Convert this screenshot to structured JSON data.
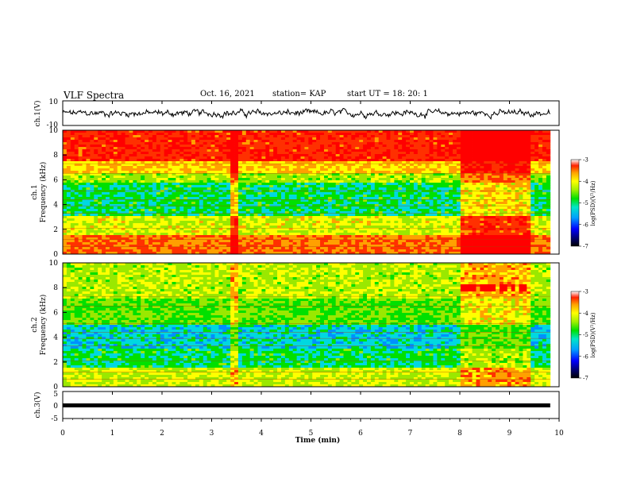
{
  "header": {
    "title": "VLF Spectra",
    "date": "Oct. 16, 2021",
    "station": "station= KAP",
    "start": "start  UT =   18: 20: 1"
  },
  "chart_data": [
    {
      "type": "line",
      "panel": "ch1-waveform",
      "ylabel": "ch.1(V)",
      "ylim": [
        -10,
        10
      ],
      "yticks": [
        10,
        -10
      ],
      "xlim": [
        0,
        10
      ],
      "description_color": "#000000"
    },
    {
      "type": "heatmap",
      "panel": "ch1-spectrogram",
      "ylabel": "ch.1\nFrequency (kHz)",
      "ylabel_lines": [
        "ch.1",
        "Frequency (kHz)"
      ],
      "ylim": [
        0,
        10
      ],
      "yticks": [
        0,
        2,
        4,
        6,
        8,
        10
      ],
      "xlim": [
        0,
        10
      ],
      "colorbar": {
        "label": "log(PSD)(V²/Hz)",
        "ticks": [
          -3,
          -4,
          -5,
          -6,
          -7
        ],
        "range": [
          -7,
          -3
        ]
      }
    },
    {
      "type": "heatmap",
      "panel": "ch2-spectrogram",
      "ylabel": "ch.2\nFrequency (kHz)",
      "ylabel_lines": [
        "ch.2",
        "Frequency (kHz)"
      ],
      "ylim": [
        0,
        10
      ],
      "yticks": [
        0,
        2,
        4,
        6,
        8,
        10
      ],
      "xlim": [
        0,
        10
      ],
      "colorbar": {
        "label": "log(PSD)(V²/Hz)",
        "ticks": [
          -3,
          -4,
          -5,
          -6,
          -7
        ],
        "range": [
          -7,
          -3
        ]
      }
    },
    {
      "type": "line",
      "panel": "ch3-waveform",
      "ylabel": "ch.3(V)",
      "ylim": [
        -5,
        5
      ],
      "yticks": [
        5,
        0,
        -5
      ],
      "xlim": [
        0,
        10
      ],
      "xticks": [
        0,
        1,
        2,
        3,
        4,
        5,
        6,
        7,
        8,
        9,
        10
      ],
      "xlabel": "Time  (min)",
      "level": 0
    }
  ],
  "colors": {
    "colormap": [
      "#00007a",
      "#0000ff",
      "#00a0ff",
      "#00e6c8",
      "#00e000",
      "#a0f000",
      "#ffff00",
      "#ffa000",
      "#ff2000",
      "#ffffff"
    ]
  }
}
